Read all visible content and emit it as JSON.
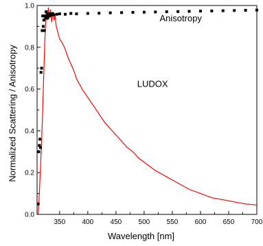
{
  "chart_data": {
    "type": "line",
    "title": "",
    "xlabel": "Wavelength [nm]",
    "ylabel": "Normalized Scattering / Anisotropy",
    "xlim": [
      310,
      700
    ],
    "ylim": [
      0.0,
      1.0
    ],
    "x_ticks": [
      350,
      400,
      450,
      500,
      550,
      600,
      650,
      700
    ],
    "y_ticks": [
      0.0,
      0.2,
      0.4,
      0.6,
      0.8,
      1.0
    ],
    "x_tick_labels": [
      "350",
      "400",
      "450",
      "500",
      "550",
      "600",
      "650",
      "700"
    ],
    "y_tick_labels": [
      "0.0",
      "0.2",
      "0.4",
      "0.6",
      "0.8",
      "1.0"
    ],
    "grid": false,
    "legend": "none",
    "annotations": [
      {
        "text": "Anisotropy",
        "x": 565,
        "y": 0.925
      },
      {
        "text": "LUDOX",
        "x": 515,
        "y": 0.61
      }
    ],
    "series": [
      {
        "name": "LUDOX",
        "style": "line",
        "color": "#ff0000",
        "x": [
          312,
          314,
          316,
          318,
          320,
          322,
          324,
          326,
          328,
          330,
          332,
          334,
          336,
          338,
          340,
          342,
          344,
          346,
          348,
          350,
          355,
          360,
          365,
          370,
          375,
          380,
          390,
          400,
          410,
          420,
          430,
          440,
          450,
          460,
          470,
          480,
          490,
          500,
          520,
          540,
          560,
          580,
          600,
          620,
          640,
          660,
          680,
          700
        ],
        "values": [
          0.0,
          0.1,
          0.22,
          0.35,
          0.5,
          0.68,
          0.85,
          0.95,
          0.93,
          0.99,
          0.95,
          0.98,
          0.92,
          0.97,
          0.93,
          0.95,
          0.9,
          0.88,
          0.86,
          0.84,
          0.82,
          0.79,
          0.75,
          0.72,
          0.69,
          0.65,
          0.6,
          0.56,
          0.52,
          0.48,
          0.44,
          0.41,
          0.38,
          0.35,
          0.32,
          0.3,
          0.27,
          0.25,
          0.21,
          0.18,
          0.15,
          0.12,
          0.1,
          0.08,
          0.07,
          0.06,
          0.05,
          0.045
        ]
      },
      {
        "name": "Anisotropy",
        "style": "scatter",
        "color": "#000000",
        "x": [
          312,
          313,
          314,
          315,
          316,
          317,
          318,
          319,
          320,
          321,
          322,
          323,
          324,
          325,
          326,
          327,
          328,
          329,
          330,
          331,
          332,
          333,
          334,
          335,
          336,
          338,
          340,
          345,
          350,
          360,
          370,
          380,
          400,
          420,
          440,
          460,
          480,
          500,
          520,
          540,
          560,
          580,
          600,
          620,
          640,
          660,
          680,
          700
        ],
        "values": [
          0.05,
          0.3,
          0.33,
          0.36,
          0.32,
          0.68,
          0.7,
          0.88,
          0.95,
          0.9,
          0.93,
          0.88,
          0.95,
          0.94,
          0.97,
          0.95,
          0.96,
          0.94,
          0.96,
          0.95,
          0.95,
          0.96,
          0.955,
          0.96,
          0.955,
          0.96,
          0.955,
          0.958,
          0.96,
          0.958,
          0.962,
          0.96,
          0.962,
          0.963,
          0.965,
          0.966,
          0.967,
          0.968,
          0.969,
          0.97,
          0.971,
          0.972,
          0.973,
          0.974,
          0.975,
          0.976,
          0.977,
          0.978
        ]
      }
    ]
  }
}
